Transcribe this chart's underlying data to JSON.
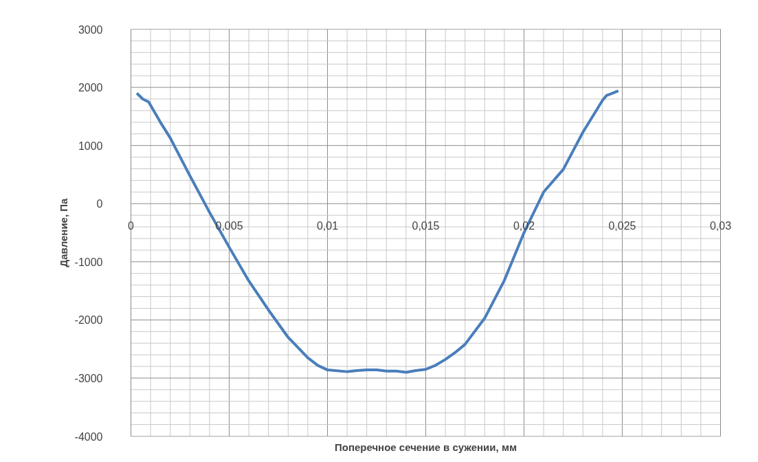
{
  "chart_data": {
    "type": "line",
    "xlabel": "Поперечное сечение в сужении, мм",
    "ylabel": "Давление, Па",
    "x": [
      0.0003,
      0.0006,
      0.0009,
      0.0015,
      0.002,
      0.003,
      0.004,
      0.005,
      0.006,
      0.007,
      0.008,
      0.009,
      0.0095,
      0.01,
      0.011,
      0.0115,
      0.012,
      0.0125,
      0.013,
      0.0135,
      0.014,
      0.0145,
      0.015,
      0.0155,
      0.016,
      0.0165,
      0.017,
      0.018,
      0.019,
      0.02,
      0.021,
      0.022,
      0.023,
      0.024,
      0.0242,
      0.0245,
      0.0248
    ],
    "series": [
      {
        "color": "#4a7ebb",
        "values": [
          1900,
          1800,
          1750,
          1400,
          1130,
          480,
          -150,
          -750,
          -1330,
          -1830,
          -2300,
          -2650,
          -2780,
          -2860,
          -2890,
          -2870,
          -2860,
          -2860,
          -2880,
          -2880,
          -2900,
          -2870,
          -2850,
          -2780,
          -2680,
          -2560,
          -2420,
          -1970,
          -1320,
          -500,
          200,
          590,
          1230,
          1780,
          1860,
          1900,
          1940
        ]
      }
    ],
    "xlim": [
      0,
      0.03
    ],
    "ylim": [
      -4000,
      3000
    ],
    "xticks": [
      0,
      {
        "value": 0.005,
        "label": "0,005"
      },
      {
        "value": 0.01,
        "label": "0,01"
      },
      {
        "value": 0.015,
        "label": "0,015"
      },
      {
        "value": 0.02,
        "label": "0,02"
      },
      {
        "value": 0.025,
        "label": "0,025"
      },
      {
        "value": 0.03,
        "label": "0,03"
      }
    ],
    "yticks": [
      -4000,
      -3000,
      -2000,
      -1000,
      0,
      1000,
      2000,
      3000
    ],
    "grid": true,
    "marker": "none",
    "line_style": "solid"
  }
}
